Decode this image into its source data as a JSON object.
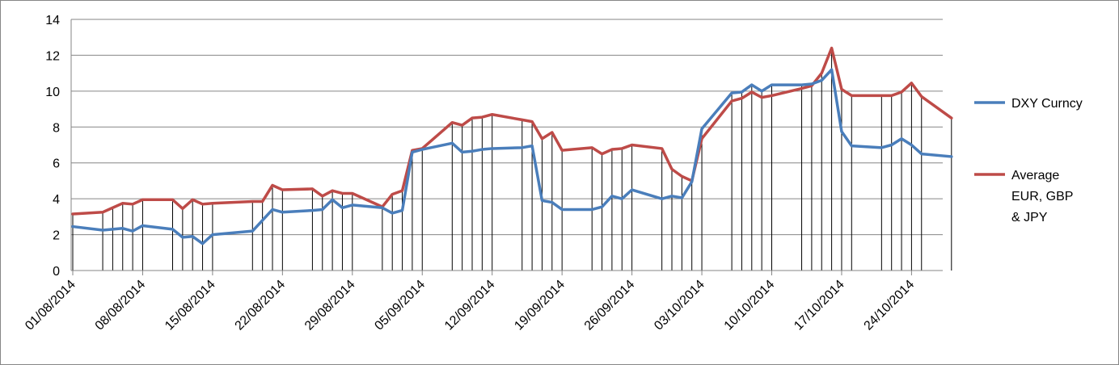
{
  "chart_data": {
    "type": "line",
    "title": "",
    "xlabel": "",
    "ylabel": "",
    "ylim": [
      0,
      14
    ],
    "yticks": [
      0,
      2,
      4,
      6,
      8,
      10,
      12,
      14
    ],
    "xlim": [
      "2014-08-01",
      "2014-10-31"
    ],
    "x_tick_labels": [
      "01/08/2014",
      "08/08/2014",
      "15/08/2014",
      "22/08/2014",
      "29/08/2014",
      "05/09/2014",
      "12/09/2014",
      "19/09/2014",
      "26/09/2014",
      "03/10/2014",
      "10/10/2014",
      "17/10/2014",
      "24/10/2014"
    ],
    "grid": "horizontal",
    "drop_lines": true,
    "legend_position": "right",
    "series": [
      {
        "name": "DXY Curncy",
        "color": "#4a7ebb",
        "points": [
          [
            "2014-08-01",
            2.45
          ],
          [
            "2014-08-04",
            2.25
          ],
          [
            "2014-08-05",
            2.3
          ],
          [
            "2014-08-06",
            2.35
          ],
          [
            "2014-08-07",
            2.2
          ],
          [
            "2014-08-08",
            2.5
          ],
          [
            "2014-08-11",
            2.3
          ],
          [
            "2014-08-12",
            1.85
          ],
          [
            "2014-08-13",
            1.9
          ],
          [
            "2014-08-14",
            1.5
          ],
          [
            "2014-08-15",
            2.0
          ],
          [
            "2014-08-19",
            2.2
          ],
          [
            "2014-08-20",
            2.8
          ],
          [
            "2014-08-21",
            3.4
          ],
          [
            "2014-08-22",
            3.25
          ],
          [
            "2014-08-25",
            3.35
          ],
          [
            "2014-08-26",
            3.4
          ],
          [
            "2014-08-27",
            3.95
          ],
          [
            "2014-08-28",
            3.5
          ],
          [
            "2014-08-29",
            3.65
          ],
          [
            "2014-09-01",
            3.5
          ],
          [
            "2014-09-02",
            3.2
          ],
          [
            "2014-09-03",
            3.35
          ],
          [
            "2014-09-04",
            6.6
          ],
          [
            "2014-09-05",
            6.75
          ],
          [
            "2014-09-08",
            7.1
          ],
          [
            "2014-09-09",
            6.6
          ],
          [
            "2014-09-10",
            6.65
          ],
          [
            "2014-09-11",
            6.75
          ],
          [
            "2014-09-12",
            6.8
          ],
          [
            "2014-09-15",
            6.85
          ],
          [
            "2014-09-16",
            6.95
          ],
          [
            "2014-09-17",
            3.9
          ],
          [
            "2014-09-18",
            3.8
          ],
          [
            "2014-09-19",
            3.4
          ],
          [
            "2014-09-22",
            3.4
          ],
          [
            "2014-09-23",
            3.55
          ],
          [
            "2014-09-24",
            4.15
          ],
          [
            "2014-09-25",
            4.0
          ],
          [
            "2014-09-26",
            4.5
          ],
          [
            "2014-09-29",
            4.0
          ],
          [
            "2014-09-30",
            4.15
          ],
          [
            "2014-10-01",
            4.05
          ],
          [
            "2014-10-02",
            4.95
          ],
          [
            "2014-10-03",
            7.9
          ],
          [
            "2014-10-06",
            9.9
          ],
          [
            "2014-10-07",
            9.95
          ],
          [
            "2014-10-08",
            10.35
          ],
          [
            "2014-10-09",
            10.0
          ],
          [
            "2014-10-10",
            10.35
          ],
          [
            "2014-10-13",
            10.35
          ],
          [
            "2014-10-14",
            10.4
          ],
          [
            "2014-10-15",
            10.6
          ],
          [
            "2014-10-16",
            11.2
          ],
          [
            "2014-10-17",
            7.75
          ],
          [
            "2014-10-18",
            6.95
          ],
          [
            "2014-10-21",
            6.85
          ],
          [
            "2014-10-22",
            7.0
          ],
          [
            "2014-10-23",
            7.35
          ],
          [
            "2014-10-24",
            7.0
          ],
          [
            "2014-10-25",
            6.5
          ],
          [
            "2014-10-28",
            6.35
          ]
        ]
      },
      {
        "name": "Average EUR, GBP & JPY",
        "color": "#be4b48",
        "points": [
          [
            "2014-08-01",
            3.15
          ],
          [
            "2014-08-04",
            3.25
          ],
          [
            "2014-08-05",
            3.5
          ],
          [
            "2014-08-06",
            3.75
          ],
          [
            "2014-08-07",
            3.7
          ],
          [
            "2014-08-08",
            3.95
          ],
          [
            "2014-08-11",
            3.95
          ],
          [
            "2014-08-12",
            3.45
          ],
          [
            "2014-08-13",
            3.95
          ],
          [
            "2014-08-14",
            3.7
          ],
          [
            "2014-08-15",
            3.75
          ],
          [
            "2014-08-19",
            3.85
          ],
          [
            "2014-08-20",
            3.85
          ],
          [
            "2014-08-21",
            4.75
          ],
          [
            "2014-08-22",
            4.5
          ],
          [
            "2014-08-25",
            4.55
          ],
          [
            "2014-08-26",
            4.15
          ],
          [
            "2014-08-27",
            4.45
          ],
          [
            "2014-08-28",
            4.3
          ],
          [
            "2014-08-29",
            4.3
          ],
          [
            "2014-09-01",
            3.55
          ],
          [
            "2014-09-02",
            4.25
          ],
          [
            "2014-09-03",
            4.45
          ],
          [
            "2014-09-04",
            6.7
          ],
          [
            "2014-09-05",
            6.8
          ],
          [
            "2014-09-08",
            8.25
          ],
          [
            "2014-09-09",
            8.1
          ],
          [
            "2014-09-10",
            8.5
          ],
          [
            "2014-09-11",
            8.55
          ],
          [
            "2014-09-12",
            8.7
          ],
          [
            "2014-09-15",
            8.4
          ],
          [
            "2014-09-16",
            8.3
          ],
          [
            "2014-09-17",
            7.35
          ],
          [
            "2014-09-18",
            7.7
          ],
          [
            "2014-09-19",
            6.7
          ],
          [
            "2014-09-22",
            6.85
          ],
          [
            "2014-09-23",
            6.5
          ],
          [
            "2014-09-24",
            6.75
          ],
          [
            "2014-09-25",
            6.8
          ],
          [
            "2014-09-26",
            7.0
          ],
          [
            "2014-09-29",
            6.8
          ],
          [
            "2014-09-30",
            5.65
          ],
          [
            "2014-10-01",
            5.25
          ],
          [
            "2014-10-02",
            5.0
          ],
          [
            "2014-10-03",
            7.35
          ],
          [
            "2014-10-06",
            9.45
          ],
          [
            "2014-10-07",
            9.6
          ],
          [
            "2014-10-08",
            9.95
          ],
          [
            "2014-10-09",
            9.65
          ],
          [
            "2014-10-10",
            9.75
          ],
          [
            "2014-10-13",
            10.15
          ],
          [
            "2014-10-14",
            10.3
          ],
          [
            "2014-10-15",
            11.0
          ],
          [
            "2014-10-16",
            12.4
          ],
          [
            "2014-10-17",
            10.1
          ],
          [
            "2014-10-18",
            9.75
          ],
          [
            "2014-10-21",
            9.75
          ],
          [
            "2014-10-22",
            9.75
          ],
          [
            "2014-10-23",
            9.95
          ],
          [
            "2014-10-24",
            10.45
          ],
          [
            "2014-10-25",
            9.7
          ],
          [
            "2014-10-28",
            8.5
          ]
        ]
      }
    ]
  }
}
